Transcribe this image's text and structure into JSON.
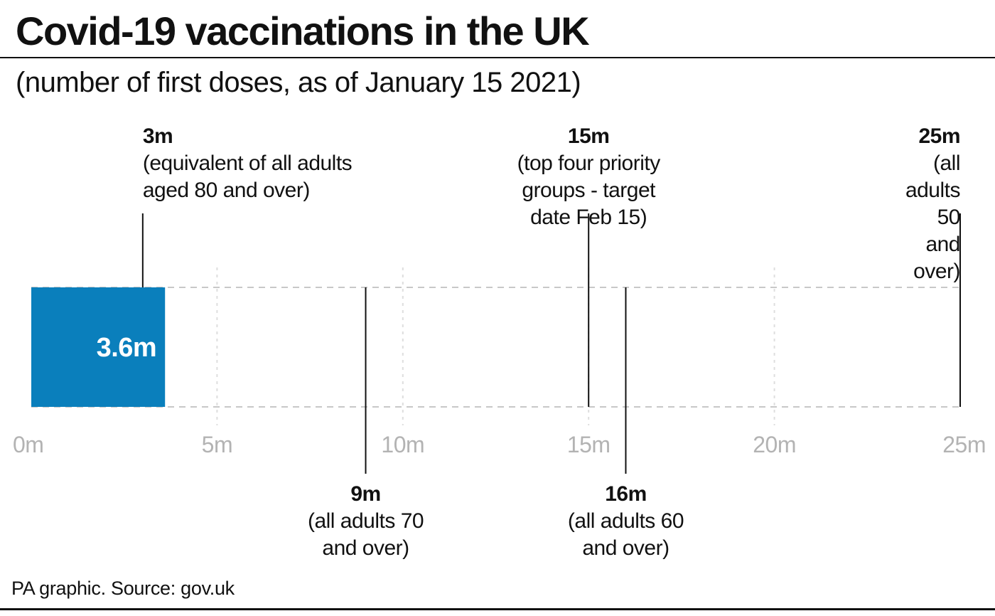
{
  "header": {
    "title": "Covid-19 vaccinations in the UK",
    "subtitle": "(number of first doses, as of January 15 2021)"
  },
  "footer": {
    "source": "PA graphic. Source: gov.uk"
  },
  "colors": {
    "bar": "#0a7fbc",
    "text": "#111111",
    "ticks": "#b3b3b3",
    "gridlines": "#c8c8c8"
  },
  "chart_data": {
    "type": "bar",
    "orientation": "horizontal",
    "unit": "m",
    "xlim": [
      0,
      25
    ],
    "ticks": [
      0,
      5,
      10,
      15,
      20,
      25
    ],
    "tick_labels": [
      "0m",
      "5m",
      "10m",
      "15m",
      "20m",
      "25m"
    ],
    "grid": true,
    "series": [
      {
        "values": [
          3.6
        ],
        "labels": [
          "3.6m"
        ]
      }
    ],
    "markers": [
      {
        "value": 3,
        "label": "3m",
        "description": "(equivalent of all adults\naged 80 and over)",
        "position": "above"
      },
      {
        "value": 15,
        "label": "15m",
        "description": "(top four priority\ngroups - target\ndate Feb 15)",
        "position": "above"
      },
      {
        "value": 25,
        "label": "25m",
        "description": "(all adults 50\nand over)",
        "position": "above"
      },
      {
        "value": 9,
        "label": "9m",
        "description": "(all adults 70\nand over)",
        "position": "below"
      },
      {
        "value": 16,
        "label": "16m",
        "description": "(all adults 60\nand over)",
        "position": "below"
      }
    ]
  }
}
